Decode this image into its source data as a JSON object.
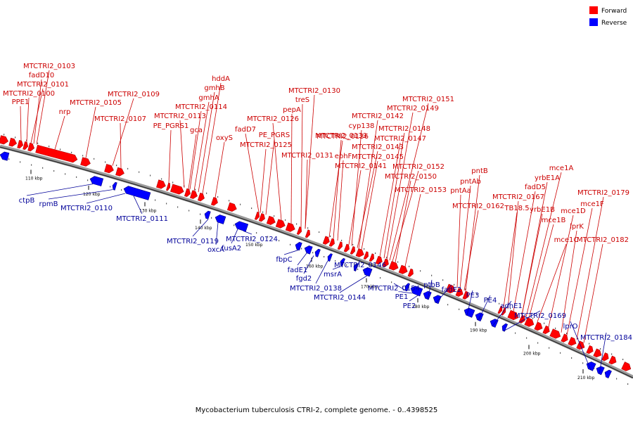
{
  "caption": "Mycobacterium tuberculosis CTRI-2, complete genome. - 0..4398525",
  "legend": [
    {
      "label": "Forward",
      "color": "#ff0000"
    },
    {
      "label": "Reverse",
      "color": "#0000ff"
    }
  ],
  "colors": {
    "forward": "#ff0000",
    "reverse": "#0000ff",
    "label_forward": "#cc0000",
    "label_reverse": "#000099",
    "backbone": "#555555"
  },
  "ticks": [
    "110 kbp",
    "120 kbp",
    "130 kbp",
    "140 kbp",
    "150 kbp",
    "160 kbp",
    "170 kbp",
    "180 kbp",
    "190 kbp",
    "200 kbp",
    "210 kbp"
  ],
  "forward_labels": [
    "MTCTRI2_0103",
    "fadD10",
    "MTCTRI2_0101",
    "MTCTRI2_0100",
    "PPE1",
    "nrp",
    "MTCTRI2_0105",
    "MTCTRI2_0109",
    "MTCTRI2_0107",
    "hddA",
    "gmhB",
    "gmhA",
    "MTCTRI2_0114",
    "MTCTRI2_0113",
    "PE_PGRS1",
    "gca",
    "oxyS",
    "MTCTRI2_0130",
    "treS",
    "pepA",
    "MTCTRI2_0126",
    "fadD7",
    "PE_PGRS",
    "MTCTRI2_0125",
    "MTCTRI2_0133",
    "MTCTRI2_0131",
    "MTCTRI2_0136",
    "ephF",
    "MTCTRI2_0141",
    "MTCTRI2_0142",
    "cyp138",
    "MTCTRI2_0143",
    "MTCTRI2_0145",
    "MTCTRI2_0151",
    "MTCTRI2_0149",
    "MTCTRI2_0148",
    "MTCTRI2_0147",
    "MTCTRI2_0152",
    "MTCTRI2_0150",
    "MTCTRI2_0153",
    "pntB",
    "pntAb",
    "pntAa",
    "MTCTRI2_0162",
    "mce1A",
    "yrbE1A",
    "fadD5",
    "MTCTRI2_0167",
    "TB18.5",
    "yrbE1B",
    "mce1C",
    "mce1B",
    "mce1D",
    "MTCTRI2_0179",
    "mce1F",
    "lprK",
    "MTCTRI2_0182"
  ],
  "reverse_labels": [
    "ctpB",
    "rpmB",
    "MTCTRI2_0110",
    "MTCTRI2_0111",
    "MTCTRI2_0119",
    "oxcA",
    "fusA2",
    "MTCTRI2_0124",
    "fbpC",
    "fadE1",
    "fgd2",
    "MTCTRI2_0138",
    "msrA",
    "MTCTRI2_0146",
    "MTCTRI2_0144",
    "MTCTRI2_0154",
    "PE1",
    "PE2",
    "ptbB",
    "fadE2",
    "PE3",
    "PE4",
    "adhE1",
    "MTCTRI2_0169",
    "lprO",
    "MTCTRI2_0184"
  ]
}
